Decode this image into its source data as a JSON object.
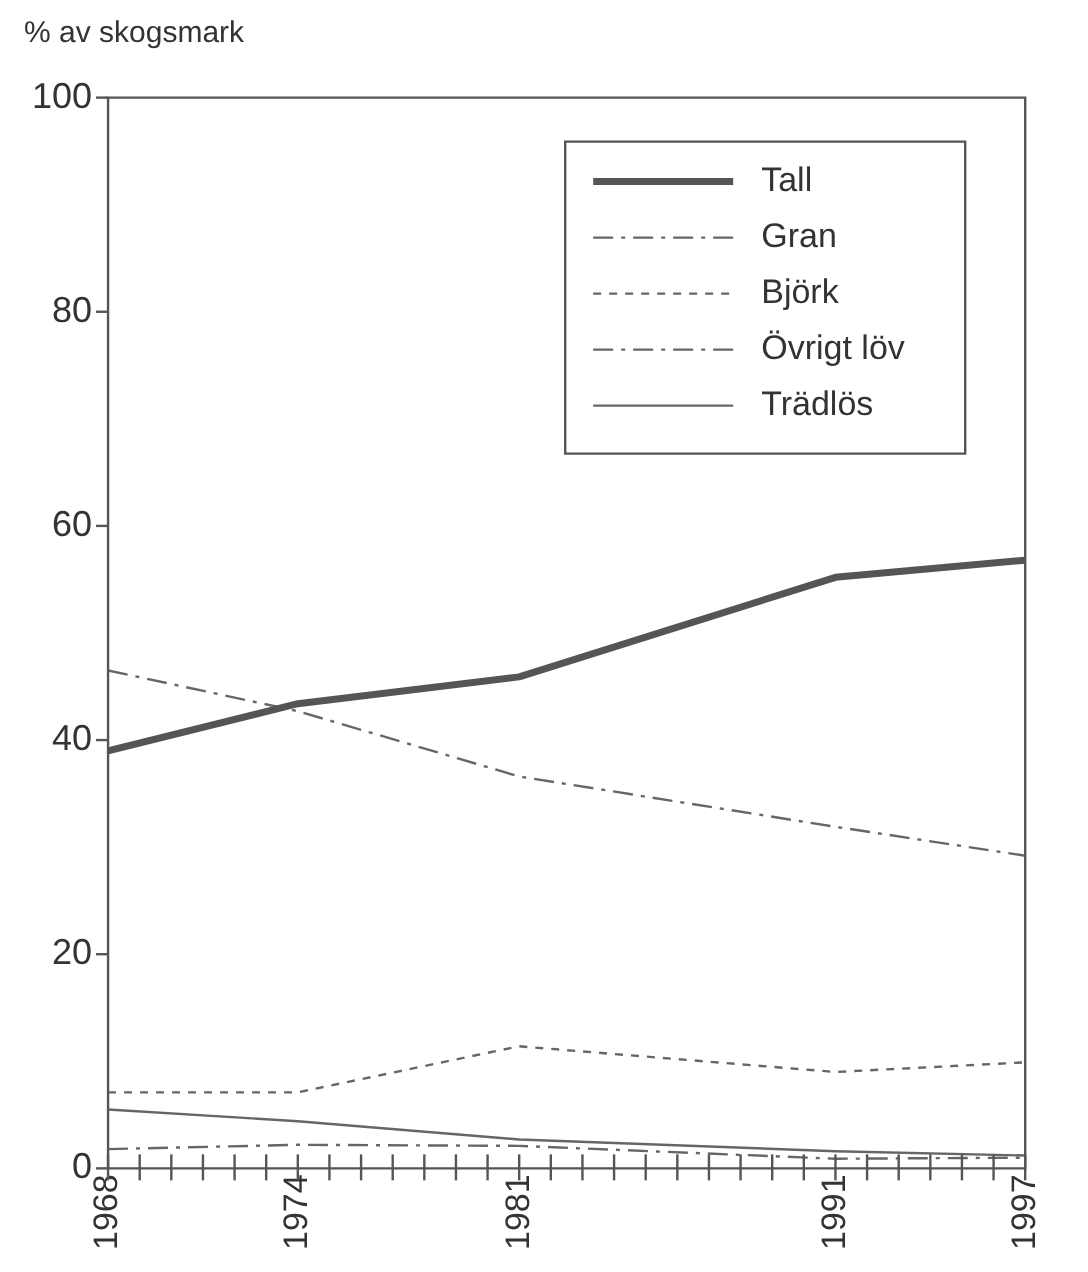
{
  "chart_data": {
    "type": "line",
    "ylabel": "% av skogsmark",
    "x": [
      1968,
      1974,
      1981,
      1991,
      1997
    ],
    "series": [
      {
        "name": "Tall",
        "color": "#555555",
        "values": [
          39,
          43.4,
          45.9,
          55.2,
          56.8
        ],
        "line_style": "solid"
      },
      {
        "name": "Gran",
        "color": "#666666",
        "values": [
          46.5,
          42.7,
          36.6,
          31.9,
          29.2
        ],
        "line_style": "dashed"
      },
      {
        "name": "Björk",
        "color": "#666666",
        "values": [
          7.1,
          7.1,
          11.4,
          9,
          9.9
        ],
        "line_style": "dotted"
      },
      {
        "name": "Övrigt löv",
        "color": "#666666",
        "values": [
          1.8,
          2.2,
          2.1,
          0.9,
          1
        ],
        "line_style": "dashed"
      },
      {
        "name": "Trädlös",
        "color": "#666666",
        "values": [
          5.5,
          4.4,
          2.7,
          1.6,
          1.2
        ],
        "line_style": "solid"
      }
    ],
    "xlim": [
      1968,
      1997
    ],
    "xticks": [
      1968,
      {
        "value": 1969,
        "label": null
      },
      {
        "value": 1970,
        "label": null
      },
      {
        "value": 1971,
        "label": null
      },
      {
        "value": 1972,
        "label": null
      },
      {
        "value": 1973,
        "label": null
      },
      1974,
      {
        "value": 1975,
        "label": null
      },
      {
        "value": 1976,
        "label": null
      },
      {
        "value": 1977,
        "label": null
      },
      {
        "value": 1978,
        "label": null
      },
      {
        "value": 1979,
        "label": null
      },
      {
        "value": 1980,
        "label": null
      },
      1981,
      {
        "value": 1982,
        "label": null
      },
      {
        "value": 1983,
        "label": null
      },
      {
        "value": 1984,
        "label": null
      },
      {
        "value": 1985,
        "label": null
      },
      {
        "value": 1986,
        "label": null
      },
      {
        "value": 1987,
        "label": null
      },
      {
        "value": 1988,
        "label": null
      },
      {
        "value": 1989,
        "label": null
      },
      {
        "value": 1990,
        "label": null
      },
      1991,
      {
        "value": 1992,
        "label": null
      },
      {
        "value": 1993,
        "label": null
      },
      {
        "value": 1994,
        "label": null
      },
      {
        "value": 1995,
        "label": null
      },
      {
        "value": 1996,
        "label": null
      },
      1997
    ],
    "ylim": [
      0,
      100
    ],
    "yticks": [
      0,
      20,
      40,
      60,
      80,
      100
    ],
    "grid": false,
    "legend": "top right",
    "marker": "none"
  }
}
